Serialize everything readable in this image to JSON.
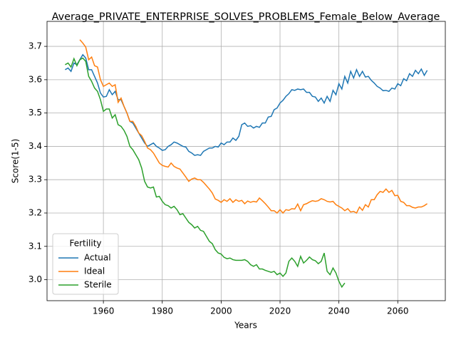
{
  "chart_data": {
    "type": "line",
    "title": "Average_PRIVATE_ENTERPRISE_SOLVES_PROBLEMS_Female_Below_Average",
    "x_label": "Years",
    "y_label": "Score(1-5)",
    "legend_title": "Fertility",
    "legend": "lower left",
    "grid": true,
    "x": [
      1947,
      1948,
      1949,
      1950,
      1951,
      1952,
      1953,
      1954,
      1955,
      1956,
      1957,
      1958,
      1959,
      1960,
      1961,
      1962,
      1963,
      1964,
      1965,
      1966,
      1967,
      1968,
      1969,
      1970,
      1971,
      1972,
      1973,
      1974,
      1975,
      1976,
      1977,
      1978,
      1979,
      1980,
      1981,
      1982,
      1983,
      1984,
      1985,
      1986,
      1987,
      1988,
      1989,
      1990,
      1991,
      1992,
      1993,
      1994,
      1995,
      1996,
      1997,
      1998,
      1999,
      2000,
      2001,
      2002,
      2003,
      2004,
      2005,
      2006,
      2007,
      2008,
      2009,
      2010,
      2011,
      2012,
      2013,
      2014,
      2015,
      2016,
      2017,
      2018,
      2019,
      2020,
      2021,
      2022,
      2023,
      2024,
      2025,
      2026,
      2027,
      2028,
      2029,
      2030,
      2031,
      2032,
      2033,
      2034,
      2035,
      2036,
      2037,
      2038,
      2039,
      2040,
      2041,
      2042,
      2043,
      2044,
      2045,
      2046,
      2047,
      2048,
      2049,
      2050,
      2051,
      2052,
      2053,
      2054,
      2055,
      2056,
      2057,
      2058,
      2059,
      2060,
      2061,
      2062,
      2063,
      2064,
      2065,
      2066,
      2067,
      2068,
      2069,
      2070
    ],
    "series": [
      {
        "name": "Actual",
        "color": "#1f77b4",
        "values": [
          3.63,
          3.635,
          3.625,
          3.65,
          3.645,
          3.66,
          3.675,
          3.665,
          3.63,
          3.63,
          3.61,
          3.59,
          3.56,
          3.548,
          3.55,
          3.57,
          3.555,
          3.565,
          3.54,
          3.54,
          3.52,
          3.5,
          3.475,
          3.47,
          3.455,
          3.44,
          3.425,
          3.41,
          3.4,
          3.405,
          3.41,
          3.4,
          3.395,
          3.388,
          3.39,
          3.4,
          3.405,
          3.413,
          3.41,
          3.405,
          3.4,
          3.398,
          3.385,
          3.38,
          3.373,
          3.375,
          3.373,
          3.385,
          3.39,
          3.395,
          3.395,
          3.4,
          3.398,
          3.41,
          3.405,
          3.413,
          3.413,
          3.425,
          3.418,
          3.43,
          3.465,
          3.47,
          3.46,
          3.462,
          3.455,
          3.46,
          3.457,
          3.47,
          3.47,
          3.488,
          3.49,
          3.51,
          3.515,
          3.53,
          3.538,
          3.55,
          3.558,
          3.57,
          3.568,
          3.572,
          3.57,
          3.572,
          3.562,
          3.562,
          3.55,
          3.548,
          3.535,
          3.545,
          3.53,
          3.55,
          3.535,
          3.568,
          3.555,
          3.588,
          3.572,
          3.61,
          3.59,
          3.625,
          3.605,
          3.63,
          3.61,
          3.625,
          3.608,
          3.61,
          3.598,
          3.59,
          3.58,
          3.575,
          3.567,
          3.568,
          3.565,
          3.575,
          3.572,
          3.588,
          3.582,
          3.603,
          3.597,
          3.618,
          3.61,
          3.628,
          3.618,
          3.632,
          3.613,
          3.628
        ]
      },
      {
        "name": "Ideal",
        "color": "#ff7f0e",
        "values": [
          null,
          null,
          null,
          null,
          null,
          3.72,
          3.71,
          3.698,
          3.66,
          3.668,
          3.642,
          3.638,
          3.6,
          3.58,
          3.585,
          3.59,
          3.58,
          3.585,
          3.532,
          3.545,
          3.52,
          3.5,
          3.475,
          3.475,
          3.46,
          3.44,
          3.432,
          3.415,
          3.395,
          3.39,
          3.38,
          3.365,
          3.35,
          3.343,
          3.34,
          3.338,
          3.35,
          3.34,
          3.335,
          3.332,
          3.32,
          3.308,
          3.295,
          3.302,
          3.305,
          3.3,
          3.3,
          3.292,
          3.282,
          3.272,
          3.26,
          3.242,
          3.238,
          3.232,
          3.24,
          3.235,
          3.243,
          3.232,
          3.24,
          3.235,
          3.238,
          3.228,
          3.236,
          3.232,
          3.235,
          3.233,
          3.245,
          3.237,
          3.228,
          3.218,
          3.207,
          3.207,
          3.2,
          3.21,
          3.2,
          3.21,
          3.208,
          3.213,
          3.212,
          3.227,
          3.207,
          3.225,
          3.228,
          3.233,
          3.237,
          3.235,
          3.237,
          3.243,
          3.24,
          3.235,
          3.233,
          3.235,
          3.225,
          3.22,
          3.215,
          3.207,
          3.213,
          3.203,
          3.205,
          3.2,
          3.218,
          3.208,
          3.225,
          3.218,
          3.24,
          3.24,
          3.255,
          3.265,
          3.262,
          3.272,
          3.262,
          3.268,
          3.252,
          3.253,
          3.235,
          3.232,
          3.222,
          3.222,
          3.217,
          3.215,
          3.218,
          3.218,
          3.222,
          3.228
        ]
      },
      {
        "name": "Sterile",
        "color": "#2ca02c",
        "values": [
          3.645,
          3.65,
          3.638,
          3.663,
          3.642,
          3.66,
          3.665,
          3.655,
          3.61,
          3.595,
          3.575,
          3.565,
          3.54,
          3.505,
          3.512,
          3.512,
          3.485,
          3.495,
          3.465,
          3.46,
          3.448,
          3.43,
          3.4,
          3.39,
          3.375,
          3.36,
          3.335,
          3.295,
          3.278,
          3.275,
          3.278,
          3.248,
          3.25,
          3.235,
          3.225,
          3.222,
          3.215,
          3.22,
          3.21,
          3.195,
          3.198,
          3.185,
          3.172,
          3.165,
          3.155,
          3.16,
          3.148,
          3.145,
          3.13,
          3.115,
          3.108,
          3.09,
          3.08,
          3.077,
          3.067,
          3.063,
          3.065,
          3.06,
          3.058,
          3.058,
          3.058,
          3.06,
          3.055,
          3.045,
          3.04,
          3.045,
          3.032,
          3.032,
          3.028,
          3.025,
          3.022,
          3.025,
          3.015,
          3.02,
          3.01,
          3.02,
          3.055,
          3.065,
          3.055,
          3.04,
          3.07,
          3.05,
          3.058,
          3.068,
          3.06,
          3.057,
          3.048,
          3.055,
          3.08,
          3.025,
          3.015,
          3.035,
          3.02,
          2.995,
          2.978,
          2.99,
          null,
          null,
          null,
          null,
          null,
          null,
          null,
          null,
          null,
          null,
          null,
          null,
          null,
          null,
          null,
          null,
          null,
          null,
          null,
          null,
          null,
          null,
          null,
          null,
          null,
          null,
          null,
          null
        ]
      }
    ],
    "xlim": [
      1940.85,
      2076.15
    ],
    "xticks": [
      1960,
      1980,
      2000,
      2020,
      2040,
      2060
    ],
    "ylim": [
      2.937,
      3.775
    ],
    "yticks": [
      {
        "value": 3.0,
        "label": "3.0"
      },
      3.1,
      3.2,
      3.3,
      3.4,
      3.5,
      3.6,
      3.7
    ]
  }
}
